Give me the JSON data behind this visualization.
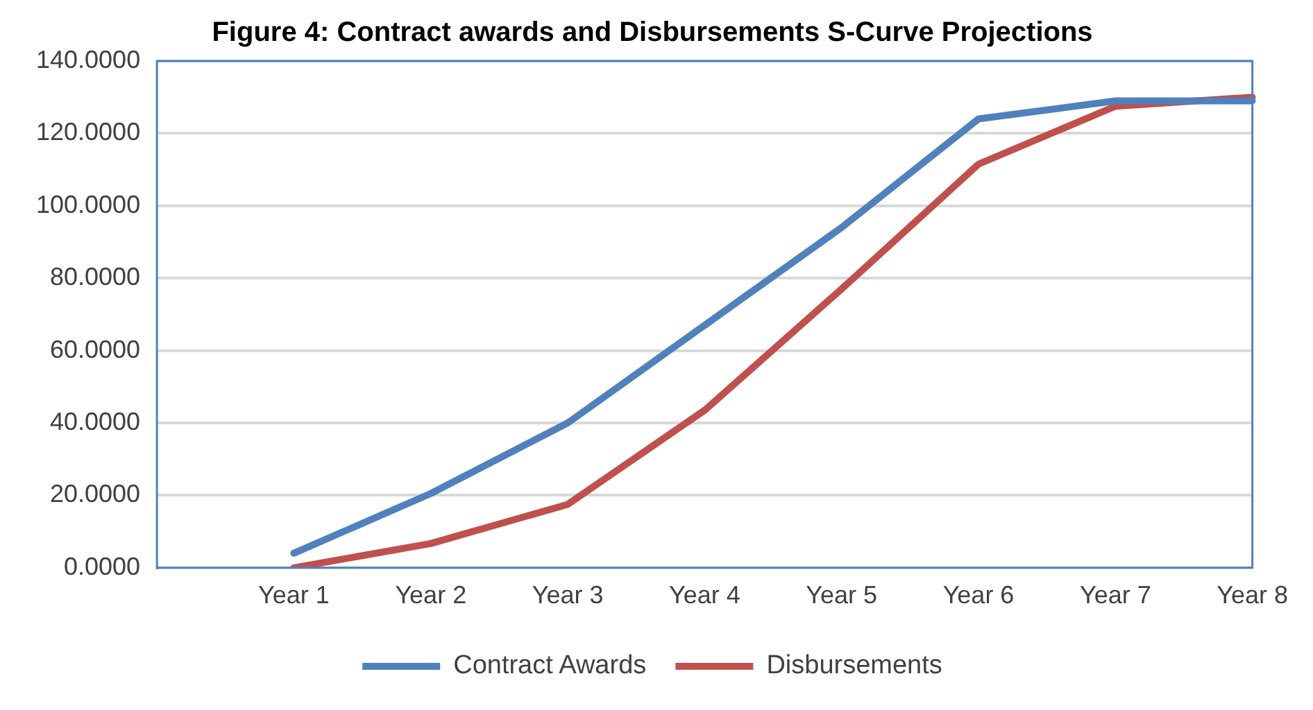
{
  "chart_data": {
    "type": "line",
    "title": "Figure 4: Contract awards and Disbursements S-Curve Projections",
    "categories": [
      null,
      "Year 1",
      "Year 2",
      "Year 3",
      "Year 4",
      "Year 5",
      "Year 6",
      "Year 7",
      "Year 8"
    ],
    "series": [
      {
        "name": "Contract Awards",
        "color": "#4f81bd",
        "values": [
          null,
          4,
          20.5,
          40,
          67,
          94,
          124,
          129,
          129
        ]
      },
      {
        "name": "Disbursements",
        "color": "#c0504d",
        "values": [
          null,
          0,
          6.7,
          17.5,
          43.5,
          77,
          111.5,
          127.5,
          130
        ]
      }
    ],
    "ylim": [
      0,
      140
    ],
    "yticks": [
      {
        "value": 0,
        "label": "0.0000"
      },
      {
        "value": 20,
        "label": "20.0000"
      },
      {
        "value": 40,
        "label": "40.0000"
      },
      {
        "value": 60,
        "label": "60.0000"
      },
      {
        "value": 80,
        "label": "80.0000"
      },
      {
        "value": 100,
        "label": "100.0000"
      },
      {
        "value": 120,
        "label": "120.0000"
      },
      {
        "value": 140,
        "label": "140.0000"
      }
    ],
    "grid": "y",
    "legend": "bottom",
    "marker": "none",
    "line_style": "solid"
  }
}
